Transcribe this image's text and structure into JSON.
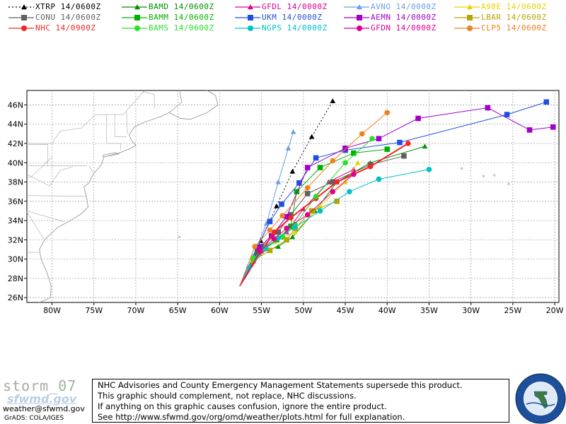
{
  "legend": [
    {
      "label": "XTRP  14/0600Z",
      "color": "#000000",
      "marker": "triangle",
      "dotted": true
    },
    {
      "label": "BAMD  14/0600Z",
      "color": "#008f00",
      "marker": "triangle",
      "dotted": false
    },
    {
      "label": "GFDL  14/0000Z",
      "color": "#e0008f",
      "marker": "triangle",
      "dotted": false
    },
    {
      "label": "AVNO  14/0000Z",
      "color": "#6a9ee8",
      "marker": "triangle",
      "dotted": false
    },
    {
      "label": "A98E  14/0600Z",
      "color": "#e6d400",
      "marker": "triangle",
      "dotted": false
    },
    {
      "label": "CONU  14/0600Z",
      "color": "#606060",
      "marker": "square",
      "dotted": false
    },
    {
      "label": "BAMM  14/0600Z",
      "color": "#00b000",
      "marker": "square",
      "dotted": false
    },
    {
      "label": "UKM   14/0000Z",
      "color": "#1f4fe0",
      "marker": "square",
      "dotted": false
    },
    {
      "label": "AEMN  14/0000Z",
      "color": "#a000c8",
      "marker": "square",
      "dotted": false
    },
    {
      "label": "LBAR  14/0600Z",
      "color": "#b8a400",
      "marker": "square",
      "dotted": false
    },
    {
      "label": "NHC   14/0900Z",
      "color": "#f02828",
      "marker": "circle",
      "dotted": false
    },
    {
      "label": "BAMS  14/0600Z",
      "color": "#28e028",
      "marker": "circle",
      "dotted": false
    },
    {
      "label": "NGPS  14/0000Z",
      "color": "#00c0c8",
      "marker": "circle",
      "dotted": false
    },
    {
      "label": "GFDN  14/0000Z",
      "color": "#e0008f",
      "marker": "circle",
      "dotted": false
    },
    {
      "label": "CLP5  14/0600Z",
      "color": "#f08020",
      "marker": "circle",
      "dotted": false
    }
  ],
  "axes": {
    "lon_range": [
      -83,
      -19.5
    ],
    "lat_range": [
      25.5,
      47.5
    ],
    "lon_ticks": [
      "80W",
      "75W",
      "70W",
      "65W",
      "60W",
      "55W",
      "50W",
      "45W",
      "40W",
      "35W",
      "30W",
      "25W",
      "20W"
    ],
    "lat_ticks": [
      "26N",
      "28N",
      "30N",
      "32N",
      "34N",
      "36N",
      "38N",
      "40N",
      "42N",
      "44N",
      "46N"
    ],
    "grid": true
  },
  "tracks": [
    {
      "model": "XTRP",
      "points": [
        [
          -57.6,
          27.2
        ],
        [
          -55.1,
          31.9
        ],
        [
          -53.2,
          35.5
        ],
        [
          -51.3,
          39.1
        ],
        [
          -49.0,
          42.7
        ],
        [
          -46.5,
          46.4
        ]
      ]
    },
    {
      "model": "BAMD",
      "points": [
        [
          -57.6,
          27.2
        ],
        [
          -55.3,
          30.6
        ],
        [
          -53.0,
          31.3
        ],
        [
          -51.3,
          32.3
        ],
        [
          -48.6,
          35.0
        ],
        [
          -46.0,
          38.0
        ],
        [
          -42.0,
          40.0
        ],
        [
          -35.5,
          41.7
        ]
      ]
    },
    {
      "model": "GFDL",
      "points": [
        [
          -57.6,
          27.2
        ],
        [
          -55.5,
          30.7
        ],
        [
          -53.5,
          31.8
        ],
        [
          -52.0,
          32.8
        ],
        [
          -50.0,
          35.2
        ],
        [
          -47.0,
          38.0
        ],
        [
          -44.0,
          39.3
        ]
      ]
    },
    {
      "model": "AVNO",
      "points": [
        [
          -57.6,
          27.2
        ],
        [
          -56.0,
          30.3
        ],
        [
          -54.4,
          33.7
        ],
        [
          -53.0,
          38.0
        ],
        [
          -51.8,
          41.5
        ],
        [
          -51.2,
          43.2
        ]
      ]
    },
    {
      "model": "A98E",
      "points": [
        [
          -57.6,
          27.2
        ],
        [
          -55.6,
          30.6
        ],
        [
          -53.5,
          31.8
        ],
        [
          -51.0,
          32.8
        ],
        [
          -48.0,
          35.5
        ],
        [
          -45.0,
          38.0
        ],
        [
          -43.5,
          40.0
        ]
      ]
    },
    {
      "model": "CONU",
      "points": [
        [
          -57.6,
          27.2
        ],
        [
          -55.0,
          31.3
        ],
        [
          -53.0,
          32.8
        ],
        [
          -51.5,
          34.6
        ],
        [
          -49.5,
          36.8
        ],
        [
          -46.5,
          38.0
        ],
        [
          -42.0,
          39.8
        ],
        [
          -38.0,
          40.7
        ]
      ]
    },
    {
      "model": "BAMM",
      "points": [
        [
          -57.6,
          27.2
        ],
        [
          -55.5,
          30.7
        ],
        [
          -53.2,
          32.0
        ],
        [
          -51.5,
          33.4
        ],
        [
          -50.8,
          37.0
        ],
        [
          -48.0,
          39.5
        ],
        [
          -44.0,
          41.0
        ],
        [
          -40.0,
          41.4
        ]
      ]
    },
    {
      "model": "UKM",
      "points": [
        [
          -57.6,
          27.2
        ],
        [
          -55.5,
          31.2
        ],
        [
          -54.0,
          33.9
        ],
        [
          -52.6,
          35.7
        ],
        [
          -50.5,
          37.9
        ],
        [
          -48.5,
          40.5
        ],
        [
          -45.0,
          41.3
        ],
        [
          -38.5,
          42.1
        ],
        [
          -25.7,
          45.0
        ],
        [
          -21.0,
          46.3
        ]
      ]
    },
    {
      "model": "AEMN",
      "points": [
        [
          -57.6,
          27.2
        ],
        [
          -55.3,
          31.2
        ],
        [
          -53.8,
          32.4
        ],
        [
          -52.0,
          34.4
        ],
        [
          -49.5,
          39.5
        ],
        [
          -45.0,
          41.5
        ],
        [
          -41.0,
          42.5
        ],
        [
          -36.3,
          44.6
        ],
        [
          -28.0,
          45.7
        ],
        [
          -23.0,
          43.4
        ],
        [
          -20.2,
          43.7
        ]
      ]
    },
    {
      "model": "LBAR",
      "points": [
        [
          -57.6,
          27.2
        ],
        [
          -56.0,
          29.8
        ],
        [
          -54.0,
          30.9
        ],
        [
          -52.0,
          32.0
        ],
        [
          -51.0,
          33.2
        ],
        [
          -49.0,
          35.0
        ],
        [
          -46.0,
          36.0
        ]
      ]
    },
    {
      "model": "NHC",
      "points": [
        [
          -57.6,
          27.2
        ],
        [
          -55.0,
          30.8
        ],
        [
          -53.5,
          32.8
        ],
        [
          -51.5,
          34.3
        ],
        [
          -48.5,
          36.3
        ],
        [
          -46.0,
          38.0
        ],
        [
          -42.0,
          39.6
        ],
        [
          -37.5,
          42.0
        ]
      ]
    },
    {
      "model": "BAMS",
      "points": [
        [
          -57.6,
          27.2
        ],
        [
          -56.0,
          30.1
        ],
        [
          -54.5,
          31.1
        ],
        [
          -52.5,
          32.3
        ],
        [
          -51.0,
          33.6
        ],
        [
          -48.5,
          36.5
        ],
        [
          -45.0,
          40.0
        ],
        [
          -41.8,
          42.5
        ]
      ]
    },
    {
      "model": "NGPS",
      "points": [
        [
          -57.6,
          27.2
        ],
        [
          -56.5,
          29.1
        ],
        [
          -54.5,
          31.1
        ],
        [
          -53.0,
          32.2
        ],
        [
          -51.0,
          33.3
        ],
        [
          -48.0,
          35.0
        ],
        [
          -44.5,
          37.0
        ],
        [
          -41.0,
          38.3
        ],
        [
          -35.0,
          39.3
        ]
      ]
    },
    {
      "model": "GFDN",
      "points": [
        [
          -57.6,
          27.2
        ],
        [
          -55.2,
          30.8
        ],
        [
          -53.5,
          32.1
        ],
        [
          -52.0,
          33.2
        ],
        [
          -49.5,
          34.6
        ],
        [
          -46.5,
          37.0
        ],
        [
          -44.0,
          38.8
        ]
      ]
    },
    {
      "model": "CLP5",
      "points": [
        [
          -57.6,
          27.2
        ],
        [
          -55.8,
          31.3
        ],
        [
          -54.0,
          33.0
        ],
        [
          -52.5,
          34.5
        ],
        [
          -49.5,
          37.4
        ],
        [
          -46.5,
          40.2
        ],
        [
          -43.0,
          43.0
        ],
        [
          -40.0,
          45.2
        ]
      ]
    }
  ],
  "storm_name": "storm_07",
  "logo_text": "sfwmd.gov",
  "email": "weather@sfwmd.gov",
  "grads": "GrADS: COLA/IGES",
  "notice_lines": [
    "NHC Advisories and County Emergency Management Statements supersede this product.",
    "This graphic should complement, not replace, NHC discussions.",
    "If anything on this graphic causes confusion, ignore the entire product.",
    "See   http://www.sfwmd.gov/org/omd/weather/plots.html  for full explanation."
  ],
  "seal": {
    "top_text": "SOUTH FLORIDA WATER MANAGEMENT DISTRICT",
    "colors": {
      "ring": "#1e4f9a",
      "inner": "#ffffff"
    }
  }
}
